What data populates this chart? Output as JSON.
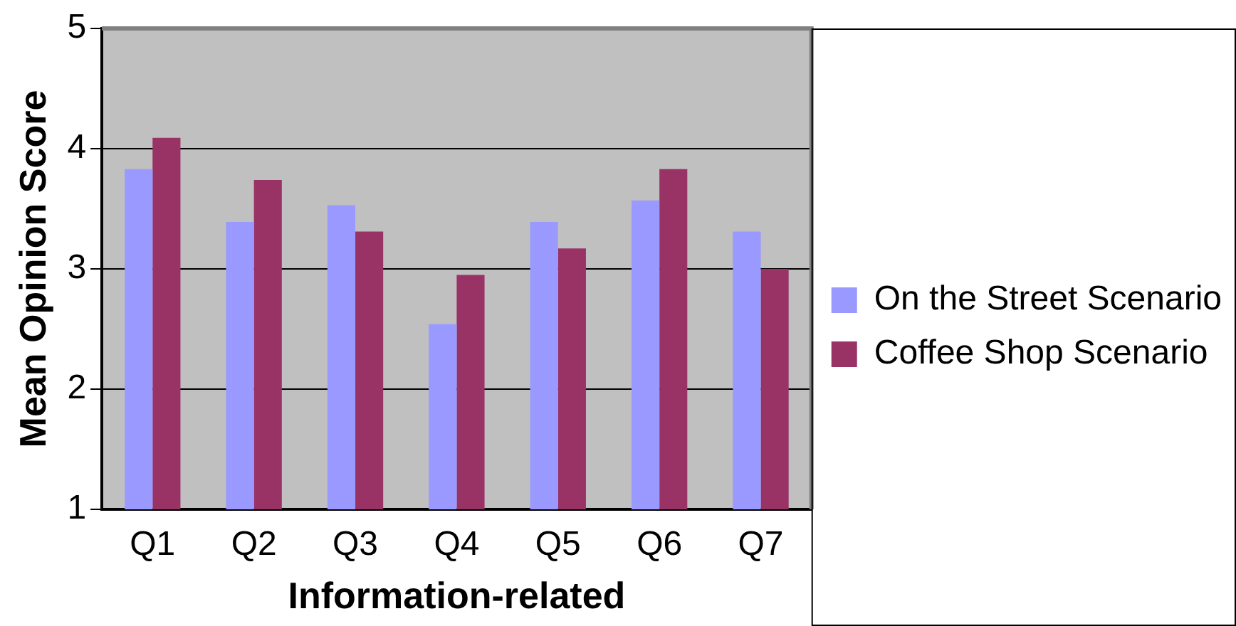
{
  "chart_data": {
    "type": "bar",
    "xlabel": "Information-related",
    "ylabel": "Mean Opinion Score",
    "categories": [
      "Q1",
      "Q2",
      "Q3",
      "Q4",
      "Q5",
      "Q6",
      "Q7"
    ],
    "series": [
      {
        "name": "On the Street Scenario",
        "color": "#9999ff",
        "values": [
          3.83,
          3.39,
          3.53,
          2.54,
          3.39,
          3.57,
          3.31
        ]
      },
      {
        "name": "Coffee Shop Scenario",
        "color": "#993366",
        "values": [
          4.09,
          3.74,
          3.31,
          2.95,
          3.17,
          3.83,
          3.0
        ]
      }
    ],
    "ylim": [
      1,
      5
    ],
    "yticks": [
      1,
      2,
      3,
      4,
      5
    ],
    "grid": "y",
    "legend": "right"
  }
}
